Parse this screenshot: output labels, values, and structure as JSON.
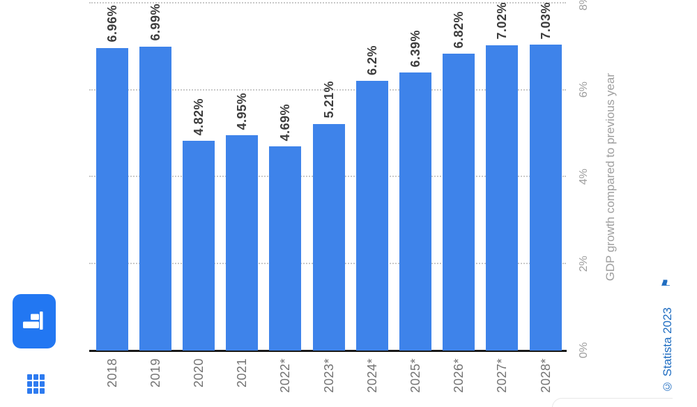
{
  "chart_data": {
    "type": "bar",
    "orientation": "rotated-90-ccw (mobile portrait chart shown rotated; all text reads bottom-to-top)",
    "categories": [
      "2018",
      "2019",
      "2020",
      "2021",
      "2022*",
      "2023*",
      "2024*",
      "2025*",
      "2026*",
      "2027*",
      "2028*"
    ],
    "values": [
      6.96,
      6.99,
      4.82,
      4.95,
      4.69,
      5.21,
      6.2,
      6.39,
      6.82,
      7.02,
      7.03
    ],
    "value_labels": [
      "6.96%",
      "6.99%",
      "4.82%",
      "4.95%",
      "4.69%",
      "5.21%",
      "6.2%",
      "6.39%",
      "6.82%",
      "7.02%",
      "7.03%"
    ],
    "ylabel": "GDP growth compared to previous year",
    "ytick_labels": [
      "0%",
      "2%",
      "4%",
      "6%",
      "8%"
    ],
    "ytick_values": [
      0,
      2,
      4,
      6,
      8
    ],
    "ylim": [
      0,
      8
    ],
    "grid": "dotted horizontal gridlines at 2/4/6/8%, solid baseline at 0%",
    "legend": "none"
  },
  "credit": {
    "text": "© Statista 2023",
    "flag_icon": "⚑"
  },
  "toolbar": {
    "chart_type_button_icon": "bar-chart-icon",
    "menu_icon": "grid-menu-icon"
  },
  "colors": {
    "bar": "#3e83ea",
    "button_bg": "#2277f2",
    "button_icon": "#ffffff",
    "grid_icon": "#2e7bf0",
    "credit_text": "#1f6dc1",
    "value_label": "#3d3d3d",
    "year_label": "#737373",
    "tick_label": "#9e9e9e",
    "axis_line": "#181818",
    "gridline": "#c9c9c9"
  }
}
